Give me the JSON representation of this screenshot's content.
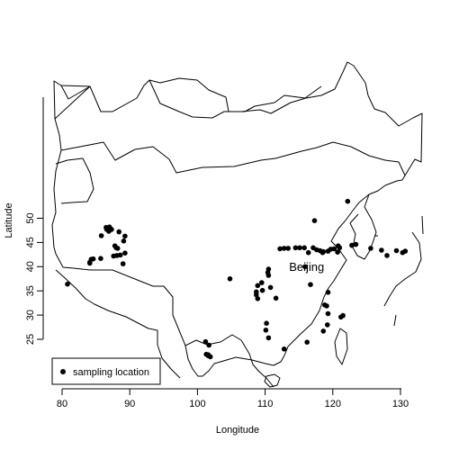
{
  "chart_data": {
    "type": "scatter",
    "title": "",
    "xlabel": "Longitude",
    "ylabel": "Latitude",
    "xlim": [
      79,
      133
    ],
    "ylim": [
      20.5,
      55
    ],
    "x_ticks": [
      80,
      90,
      100,
      110,
      120,
      130
    ],
    "y_ticks": [
      25,
      30,
      35,
      40,
      45,
      50
    ],
    "grid": false,
    "legend": {
      "position": "bottom-left",
      "entries": [
        "sampling location"
      ]
    },
    "city": {
      "name": "Beijing",
      "lon": 116.4,
      "lat": 39.9
    },
    "series": [
      {
        "name": "sampling location",
        "points": [
          [
            122.2,
            53.5
          ],
          [
            117.3,
            49.5
          ],
          [
            86.5,
            48.1
          ],
          [
            86.8,
            47.9
          ],
          [
            87.0,
            48.2
          ],
          [
            86.6,
            47.7
          ],
          [
            87.3,
            47.7
          ],
          [
            86.9,
            47.3
          ],
          [
            88.4,
            47.2
          ],
          [
            85.8,
            46.4
          ],
          [
            89.3,
            46.3
          ],
          [
            89.1,
            45.3
          ],
          [
            87.8,
            44.3
          ],
          [
            88.0,
            43.9
          ],
          [
            88.2,
            43.8
          ],
          [
            89.3,
            42.8
          ],
          [
            88.6,
            42.4
          ],
          [
            88.1,
            42.3
          ],
          [
            87.6,
            42.2
          ],
          [
            85.7,
            41.7
          ],
          [
            84.6,
            41.6
          ],
          [
            84.3,
            41.5
          ],
          [
            84.1,
            40.9
          ],
          [
            84.1,
            40.7
          ],
          [
            89.0,
            40.6
          ],
          [
            80.8,
            36.4
          ],
          [
            112.2,
            43.7
          ],
          [
            112.8,
            43.8
          ],
          [
            113.4,
            43.8
          ],
          [
            114.5,
            43.9
          ],
          [
            115.1,
            43.9
          ],
          [
            115.8,
            43.9
          ],
          [
            117.1,
            43.9
          ],
          [
            117.6,
            43.5
          ],
          [
            118.1,
            43.3
          ],
          [
            118.6,
            43.1
          ],
          [
            119.3,
            43.2
          ],
          [
            119.7,
            43.6
          ],
          [
            120.2,
            43.7
          ],
          [
            121.0,
            43.9
          ],
          [
            120.8,
            44.3
          ],
          [
            122.8,
            44.4
          ],
          [
            123.4,
            44.6
          ],
          [
            125.6,
            43.8
          ],
          [
            127.2,
            43.4
          ],
          [
            128.0,
            42.3
          ],
          [
            116.4,
            42.9
          ],
          [
            118.5,
            42.9
          ],
          [
            120.7,
            43.0
          ],
          [
            129.4,
            43.3
          ],
          [
            130.7,
            43.2
          ],
          [
            130.3,
            42.9
          ],
          [
            115.9,
            40.0
          ],
          [
            110.5,
            39.5
          ],
          [
            110.4,
            38.8
          ],
          [
            110.5,
            38.2
          ],
          [
            109.5,
            36.7
          ],
          [
            108.9,
            36.1
          ],
          [
            104.8,
            37.5
          ],
          [
            108.7,
            34.8
          ],
          [
            108.7,
            34.2
          ],
          [
            109.6,
            35.1
          ],
          [
            110.8,
            35.7
          ],
          [
            111.6,
            33.5
          ],
          [
            108.9,
            33.4
          ],
          [
            116.7,
            36.3
          ],
          [
            119.3,
            34.7
          ],
          [
            118.8,
            32.1
          ],
          [
            119.1,
            31.9
          ],
          [
            119.3,
            30.3
          ],
          [
            118.6,
            26.7
          ],
          [
            121.5,
            29.9
          ],
          [
            121.2,
            29.6
          ],
          [
            119.2,
            28.0
          ],
          [
            110.2,
            28.3
          ],
          [
            110.1,
            26.9
          ],
          [
            110.5,
            25.3
          ],
          [
            116.2,
            24.4
          ],
          [
            112.8,
            23.0
          ],
          [
            101.2,
            24.5
          ],
          [
            101.7,
            23.8
          ],
          [
            101.3,
            21.9
          ],
          [
            101.6,
            21.6
          ],
          [
            101.9,
            21.4
          ],
          [
            101.6,
            21.8
          ]
        ]
      }
    ]
  }
}
